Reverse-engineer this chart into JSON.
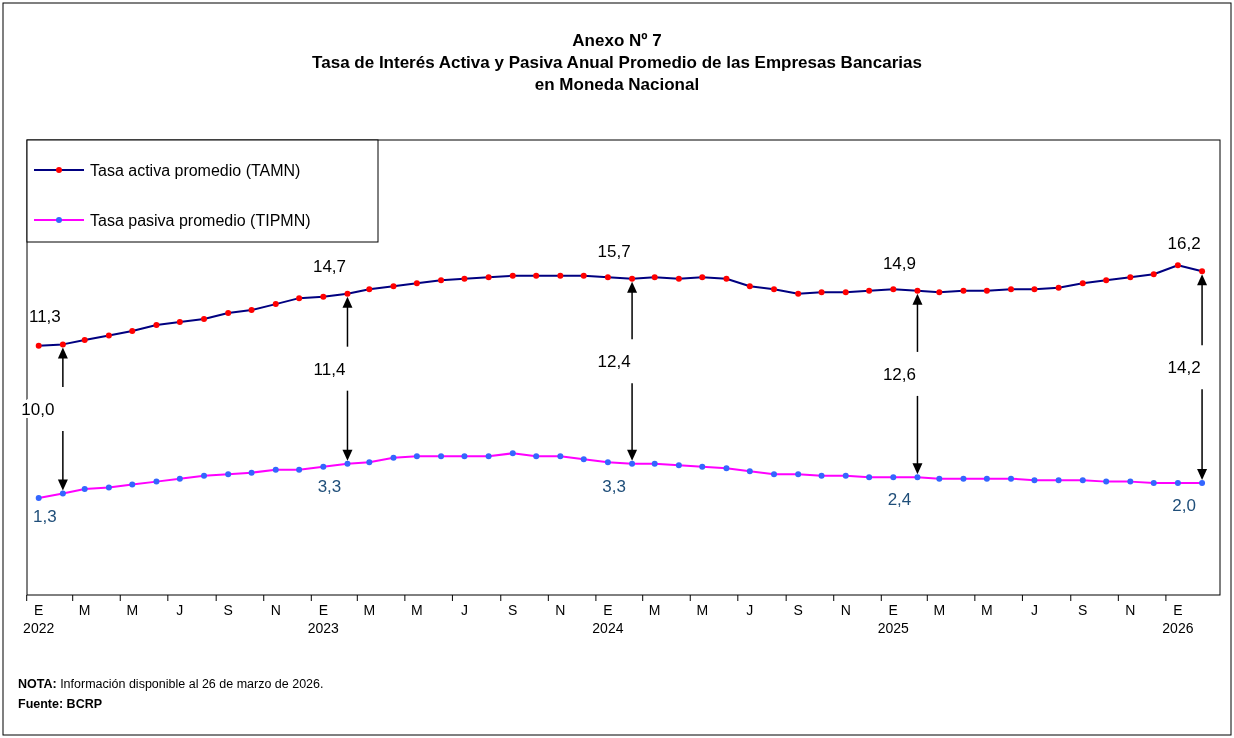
{
  "chart_data": {
    "type": "line",
    "title": "Anexo Nº 7\nTasa de Interés  Activa y Pasiva Anual Promedio de las Empresas Bancarias\nen Moneda Nacional",
    "x": [
      "2022-01",
      "2022-02",
      "2022-03",
      "2022-04",
      "2022-05",
      "2022-06",
      "2022-07",
      "2022-08",
      "2022-09",
      "2022-10",
      "2022-11",
      "2022-12",
      "2023-01",
      "2023-02",
      "2023-03",
      "2023-04",
      "2023-05",
      "2023-06",
      "2023-07",
      "2023-08",
      "2023-09",
      "2023-10",
      "2023-11",
      "2023-12",
      "2024-01",
      "2024-02",
      "2024-03",
      "2024-04",
      "2024-05",
      "2024-06",
      "2024-07",
      "2024-08",
      "2024-09",
      "2024-10",
      "2024-11",
      "2024-12",
      "2025-01",
      "2025-02",
      "2025-03",
      "2025-04",
      "2025-05",
      "2025-06",
      "2025-07",
      "2025-08",
      "2025-09",
      "2025-10",
      "2025-11",
      "2025-12",
      "2026-01",
      "2026-02"
    ],
    "series": [
      {
        "name": "Tasa activa promedio (TAMN)",
        "color": "#000080",
        "values": [
          11.2,
          11.3,
          11.6,
          11.9,
          12.2,
          12.6,
          12.8,
          13.0,
          13.4,
          13.6,
          14.0,
          14.4,
          14.5,
          14.7,
          15.0,
          15.2,
          15.4,
          15.6,
          15.7,
          15.8,
          15.9,
          15.9,
          15.9,
          15.9,
          15.8,
          15.7,
          15.8,
          15.7,
          15.8,
          15.7,
          15.2,
          15.0,
          14.7,
          14.8,
          14.8,
          14.9,
          15.0,
          14.9,
          14.8,
          14.9,
          14.9,
          15.0,
          15.0,
          15.1,
          15.4,
          15.6,
          15.8,
          16.0,
          16.6,
          16.2
        ],
        "value_labels": [
          null,
          "11,3",
          null,
          null,
          null,
          null,
          null,
          null,
          null,
          null,
          null,
          null,
          null,
          "14,7",
          null,
          null,
          null,
          null,
          null,
          null,
          null,
          null,
          null,
          null,
          null,
          "15,7",
          null,
          null,
          null,
          null,
          null,
          null,
          null,
          null,
          null,
          null,
          null,
          "14,9",
          null,
          null,
          null,
          null,
          null,
          null,
          null,
          null,
          null,
          null,
          null,
          "16,2"
        ]
      },
      {
        "name": "Tasa pasiva promedio (TIPMN)",
        "color": "#ff00ff",
        "values": [
          1.0,
          1.3,
          1.6,
          1.7,
          1.9,
          2.1,
          2.3,
          2.5,
          2.6,
          2.7,
          2.9,
          2.9,
          3.1,
          3.3,
          3.4,
          3.7,
          3.8,
          3.8,
          3.8,
          3.8,
          4.0,
          3.8,
          3.8,
          3.6,
          3.4,
          3.3,
          3.3,
          3.2,
          3.1,
          3.0,
          2.8,
          2.6,
          2.6,
          2.5,
          2.5,
          2.4,
          2.4,
          2.4,
          2.3,
          2.3,
          2.3,
          2.3,
          2.2,
          2.2,
          2.2,
          2.1,
          2.1,
          2.0,
          2.0,
          2.0
        ],
        "value_labels": [
          null,
          "1,3",
          null,
          null,
          null,
          null,
          null,
          null,
          null,
          null,
          null,
          null,
          null,
          "3,3",
          null,
          null,
          null,
          null,
          null,
          null,
          null,
          null,
          null,
          null,
          null,
          "3,3",
          null,
          null,
          null,
          null,
          null,
          null,
          null,
          null,
          null,
          null,
          null,
          "2,4",
          null,
          null,
          null,
          null,
          null,
          null,
          null,
          null,
          null,
          null,
          null,
          "2,0"
        ]
      }
    ],
    "xlim": [
      "2021-12-17",
      "2026-02-24"
    ],
    "xticks": [
      {
        "value": "2022-01",
        "label": "E\n2022"
      },
      {
        "value": "2022-03",
        "label": "M"
      },
      {
        "value": "2022-05",
        "label": "M"
      },
      {
        "value": "2022-07",
        "label": "J"
      },
      {
        "value": "2022-09",
        "label": "S"
      },
      {
        "value": "2022-11",
        "label": "N"
      },
      {
        "value": "2023-01",
        "label": "E\n2023"
      },
      {
        "value": "2023-03",
        "label": "M"
      },
      {
        "value": "2023-05",
        "label": "M"
      },
      {
        "value": "2023-07",
        "label": "J"
      },
      {
        "value": "2023-09",
        "label": "S"
      },
      {
        "value": "2023-11",
        "label": "N"
      },
      {
        "value": "2024-01",
        "label": "E\n2024"
      },
      {
        "value": "2024-03",
        "label": "M"
      },
      {
        "value": "2024-05",
        "label": "M"
      },
      {
        "value": "2024-07",
        "label": "J"
      },
      {
        "value": "2024-09",
        "label": "S"
      },
      {
        "value": "2024-11",
        "label": "N"
      },
      {
        "value": "2025-01",
        "label": "E\n2025"
      },
      {
        "value": "2025-03",
        "label": "M"
      },
      {
        "value": "2025-05",
        "label": "M"
      },
      {
        "value": "2025-07",
        "label": "J"
      },
      {
        "value": "2025-09",
        "label": "S"
      },
      {
        "value": "2025-11",
        "label": "N"
      },
      {
        "value": "2026-01",
        "label": "E\n2026"
      }
    ],
    "ylim": [
      -5.5,
      25
    ],
    "tick_labels": "x",
    "marker": "circle",
    "legend": "top left",
    "annotations": [
      "10,0",
      "11,4",
      "12,4",
      "12,6",
      "14,2",
      "NOTA: Información disponible al 26 de marzo de 2026.",
      "Fuente: BCRP"
    ]
  }
}
